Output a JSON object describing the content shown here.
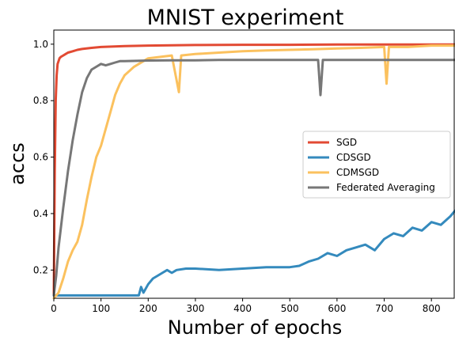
{
  "chart_data": {
    "type": "line",
    "title": "MNIST experiment",
    "xlabel": "Number of epochs",
    "ylabel": "accs",
    "xlim": [
      0,
      850
    ],
    "ylim": [
      0.1,
      1.05
    ],
    "xticks": [
      0,
      100,
      200,
      300,
      400,
      500,
      600,
      700,
      800
    ],
    "yticks": [
      0.2,
      0.4,
      0.6,
      0.8,
      1.0
    ],
    "ytick_labels": [
      "0.2",
      "0.4",
      "0.6",
      "0.8",
      "1.0"
    ],
    "grid": false,
    "legend_position": "center-right",
    "series": [
      {
        "name": "SGD",
        "color": "#E24A33",
        "x": [
          0,
          2,
          4,
          6,
          8,
          10,
          12,
          15,
          20,
          25,
          30,
          40,
          50,
          60,
          80,
          100,
          150,
          200,
          250,
          300,
          400,
          500,
          600,
          700,
          800,
          850
        ],
        "values": [
          0.11,
          0.55,
          0.8,
          0.89,
          0.93,
          0.94,
          0.95,
          0.955,
          0.96,
          0.965,
          0.97,
          0.975,
          0.98,
          0.983,
          0.987,
          0.99,
          0.993,
          0.995,
          0.996,
          0.997,
          0.998,
          0.998,
          0.999,
          0.999,
          0.999,
          0.999
        ]
      },
      {
        "name": "CDSGD",
        "color": "#348ABD",
        "x": [
          0,
          10,
          50,
          100,
          150,
          180,
          185,
          190,
          200,
          210,
          220,
          230,
          240,
          250,
          260,
          280,
          300,
          350,
          400,
          450,
          500,
          520,
          540,
          560,
          580,
          600,
          620,
          640,
          660,
          680,
          700,
          720,
          740,
          760,
          780,
          800,
          820,
          840,
          850
        ],
        "values": [
          0.11,
          0.11,
          0.11,
          0.11,
          0.11,
          0.11,
          0.14,
          0.12,
          0.15,
          0.17,
          0.18,
          0.19,
          0.2,
          0.19,
          0.2,
          0.205,
          0.205,
          0.2,
          0.205,
          0.21,
          0.21,
          0.215,
          0.23,
          0.24,
          0.26,
          0.25,
          0.27,
          0.28,
          0.29,
          0.27,
          0.31,
          0.33,
          0.32,
          0.35,
          0.34,
          0.37,
          0.36,
          0.39,
          0.41
        ]
      },
      {
        "name": "CDMSGD",
        "color": "#FBC15E",
        "x": [
          0,
          5,
          10,
          20,
          30,
          40,
          50,
          60,
          70,
          80,
          90,
          100,
          110,
          120,
          130,
          140,
          150,
          170,
          200,
          250,
          265,
          270,
          300,
          350,
          400,
          450,
          500,
          550,
          600,
          650,
          700,
          705,
          710,
          750,
          800,
          850
        ],
        "values": [
          0.1,
          0.11,
          0.12,
          0.17,
          0.23,
          0.27,
          0.3,
          0.36,
          0.45,
          0.53,
          0.6,
          0.64,
          0.7,
          0.76,
          0.82,
          0.86,
          0.89,
          0.92,
          0.95,
          0.96,
          0.83,
          0.96,
          0.965,
          0.97,
          0.975,
          0.978,
          0.98,
          0.982,
          0.985,
          0.987,
          0.99,
          0.86,
          0.99,
          0.99,
          0.995,
          0.995
        ]
      },
      {
        "name": "Federated Averaging",
        "color": "#777777",
        "x": [
          0,
          5,
          10,
          20,
          30,
          40,
          50,
          60,
          70,
          80,
          90,
          100,
          110,
          120,
          130,
          140,
          150,
          200,
          250,
          300,
          350,
          400,
          450,
          500,
          560,
          565,
          570,
          600,
          650,
          700,
          750,
          800,
          850
        ],
        "values": [
          0.11,
          0.18,
          0.28,
          0.42,
          0.55,
          0.66,
          0.75,
          0.83,
          0.88,
          0.91,
          0.92,
          0.93,
          0.925,
          0.93,
          0.935,
          0.94,
          0.94,
          0.942,
          0.943,
          0.943,
          0.944,
          0.944,
          0.944,
          0.944,
          0.944,
          0.82,
          0.944,
          0.944,
          0.944,
          0.944,
          0.944,
          0.944,
          0.944
        ]
      }
    ],
    "legend": [
      "SGD",
      "CDSGD",
      "CDMSGD",
      "Federated Averaging"
    ]
  }
}
